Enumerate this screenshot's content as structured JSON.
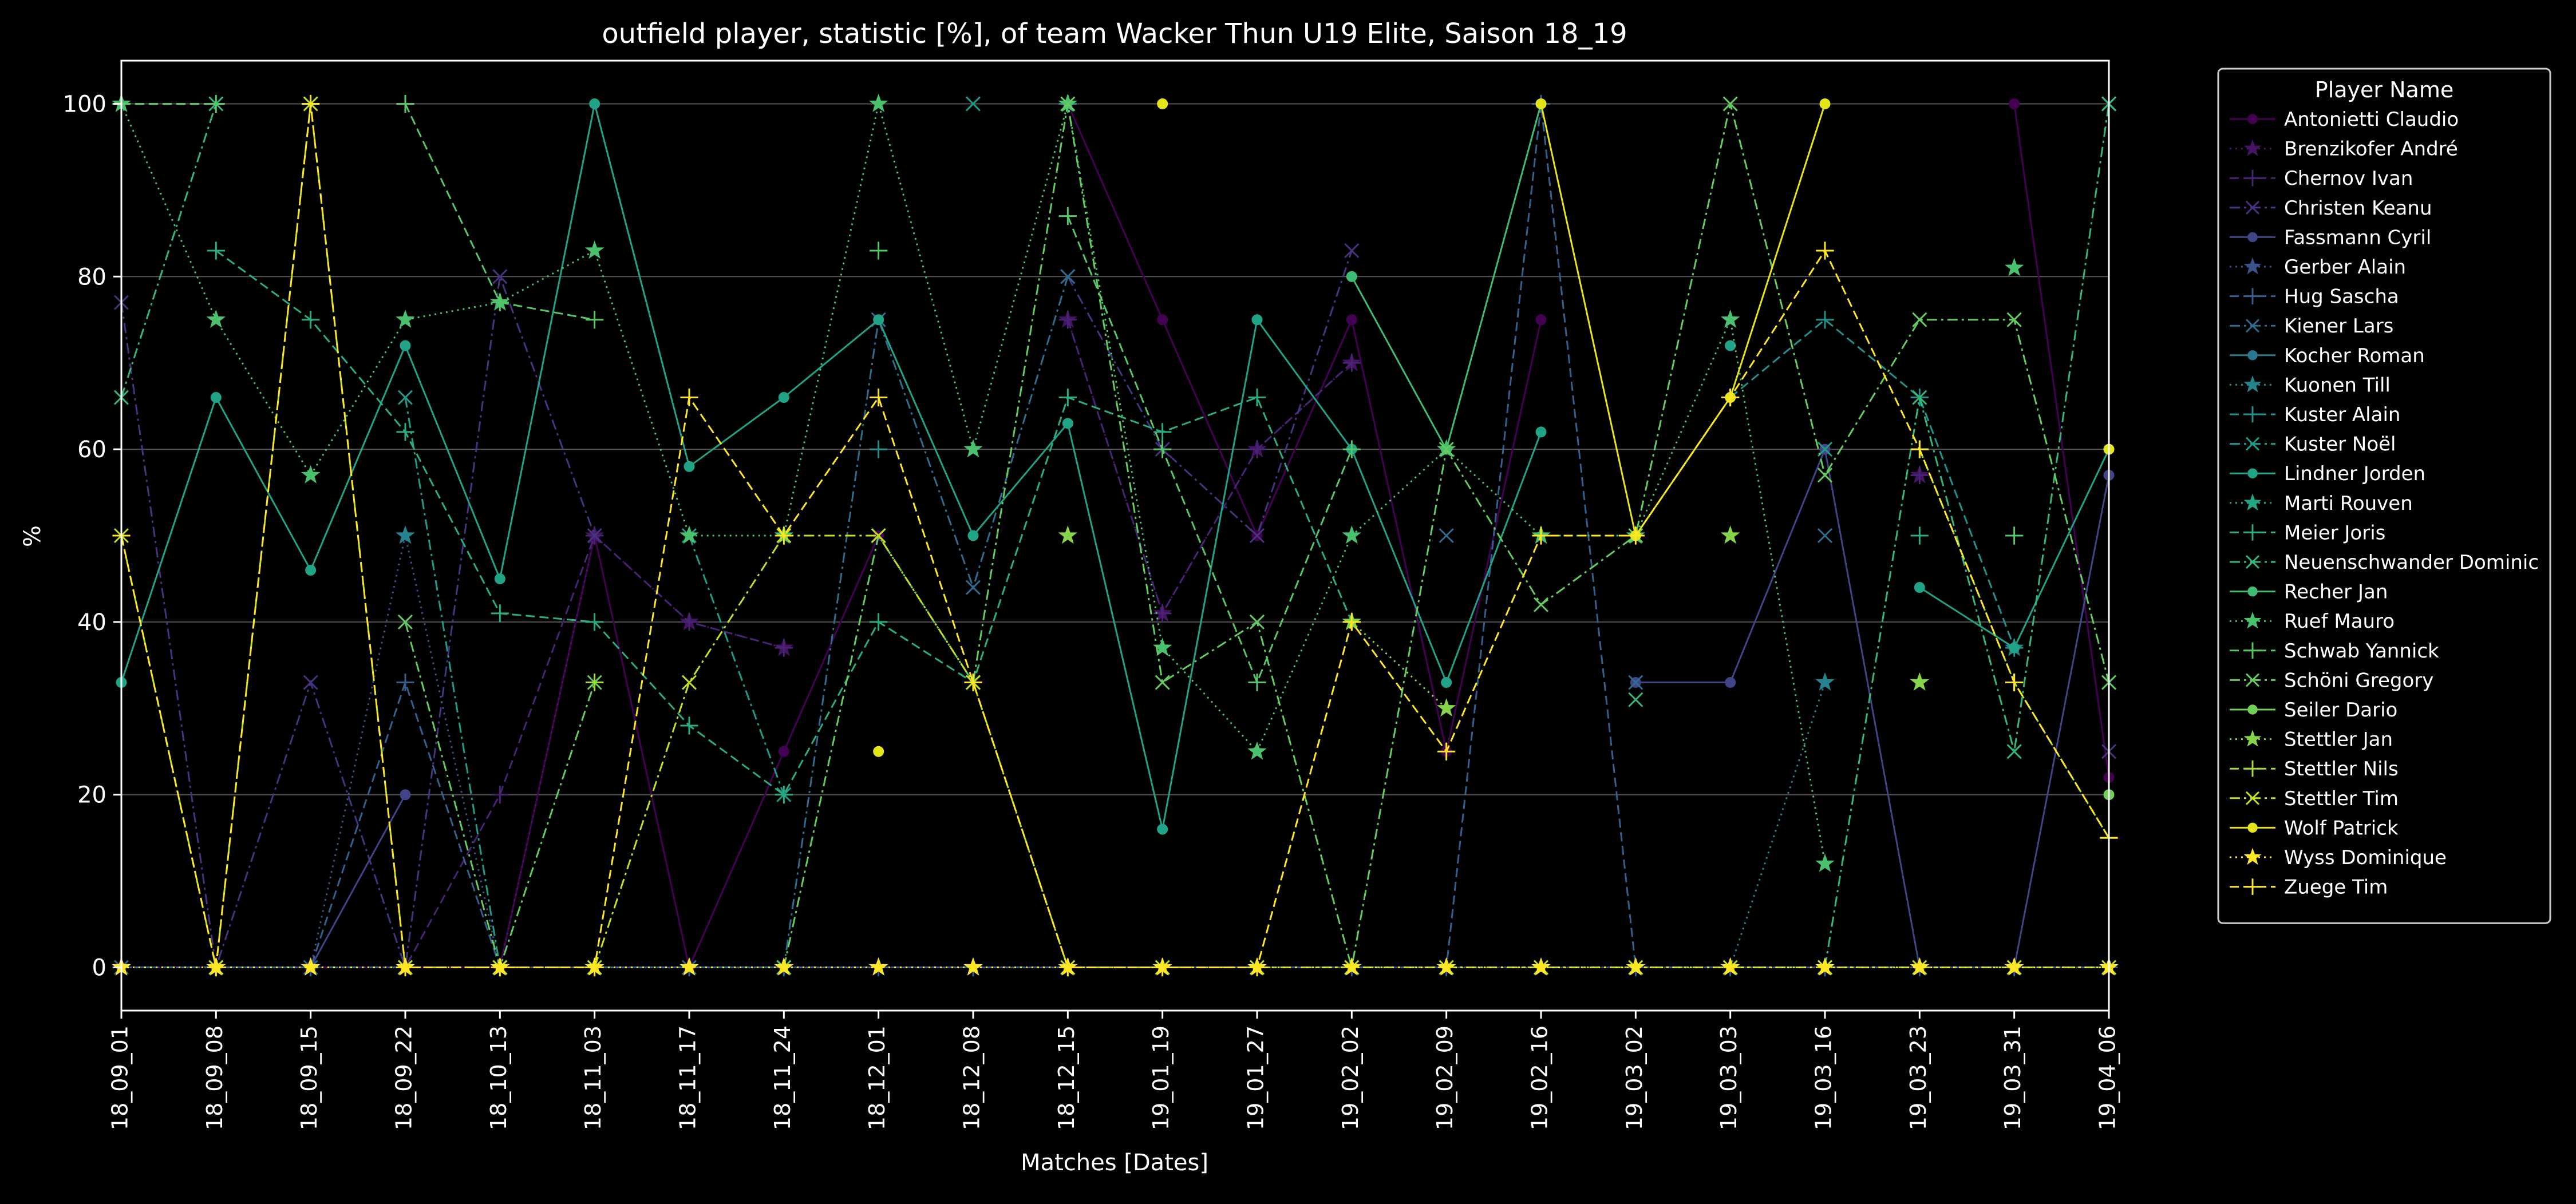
{
  "chart_data": {
    "type": "line",
    "title": "outfield player, statistic [%], of team Wacker Thun U19 Elite, Saison 18_19",
    "xlabel": "Matches [Dates]",
    "ylabel": "%",
    "ylim": [
      -5,
      105
    ],
    "yticks": [
      0,
      20,
      40,
      60,
      80,
      100
    ],
    "grid": "horizontal",
    "legend_title": "Player Name",
    "legend_position": "outside-top-right",
    "categories": [
      "18_09_01",
      "18_09_08",
      "18_09_15",
      "18_09_22",
      "18_10_13",
      "18_11_03",
      "18_11_17",
      "18_11_24",
      "18_12_01",
      "18_12_08",
      "18_12_15",
      "19_01_19",
      "19_01_27",
      "19_02_02",
      "19_02_09",
      "19_02_16",
      "19_03_02",
      "19_03_03",
      "19_03_16",
      "19_03_23",
      "19_03_31",
      "19_04_06"
    ],
    "series": [
      {
        "name": "Antonietti Claudio",
        "color": "#440154",
        "marker": "o",
        "dash": "solid",
        "values": [
          0,
          0,
          0,
          0,
          0,
          50,
          0,
          25,
          50,
          null,
          100,
          75,
          50,
          75,
          25,
          75,
          null,
          null,
          null,
          null,
          100,
          22
        ]
      },
      {
        "name": "Brenzikofer André",
        "color": "#471365",
        "marker": "*",
        "dash": "dotted",
        "values": [
          0,
          0,
          0,
          0,
          0,
          50,
          40,
          37,
          null,
          null,
          75,
          41,
          60,
          70,
          null,
          null,
          null,
          null,
          null,
          57,
          null,
          null
        ]
      },
      {
        "name": "Chernov Ivan",
        "color": "#482475",
        "marker": "+",
        "dash": "dashed",
        "values": [
          0,
          0,
          0,
          0,
          20,
          50,
          40,
          37,
          null,
          null,
          75,
          41,
          60,
          70,
          null,
          null,
          null,
          null,
          null,
          57,
          null,
          null
        ]
      },
      {
        "name": "Christen Keanu",
        "color": "#463480",
        "marker": "x",
        "dash": "dashdot",
        "values": [
          77,
          0,
          33,
          0,
          80,
          50,
          null,
          null,
          null,
          null,
          80,
          60,
          50,
          83,
          null,
          null,
          null,
          null,
          null,
          null,
          null,
          25
        ]
      },
      {
        "name": "Fassmann Cyril",
        "color": "#414487",
        "marker": "o",
        "dash": "solid",
        "values": [
          null,
          0,
          0,
          20,
          null,
          null,
          null,
          null,
          null,
          null,
          null,
          null,
          null,
          null,
          null,
          null,
          33,
          33,
          60,
          0,
          0,
          57
        ]
      },
      {
        "name": "Gerber Alain",
        "color": "#3b528b",
        "marker": "*",
        "dash": "dotted",
        "values": [
          0,
          0,
          0,
          50,
          0,
          0,
          0,
          0,
          0,
          0,
          0,
          0,
          0,
          0,
          0,
          0,
          0,
          0,
          0,
          0,
          0,
          0
        ]
      },
      {
        "name": "Hug Sascha",
        "color": "#355f8d",
        "marker": "+",
        "dash": "dashed",
        "values": [
          0,
          0,
          0,
          33,
          0,
          0,
          0,
          0,
          0,
          0,
          0,
          0,
          0,
          0,
          0,
          100,
          0,
          0,
          0,
          0,
          0,
          0
        ]
      },
      {
        "name": "Kiener Lars",
        "color": "#2f6c8e",
        "marker": "x",
        "dash": "dashdot",
        "values": [
          0,
          0,
          0,
          0,
          0,
          0,
          0,
          0,
          75,
          44,
          80,
          null,
          null,
          null,
          50,
          null,
          33,
          null,
          50,
          null,
          null,
          null
        ]
      },
      {
        "name": "Kocher Roman",
        "color": "#2a788e",
        "marker": "o",
        "dash": "solid",
        "values": [
          null,
          null,
          null,
          null,
          null,
          null,
          null,
          null,
          null,
          null,
          null,
          null,
          null,
          null,
          null,
          null,
          null,
          null,
          null,
          null,
          null,
          null
        ]
      },
      {
        "name": "Kuonen Till",
        "color": "#25848e",
        "marker": "*",
        "dash": "dotted",
        "values": [
          null,
          null,
          null,
          50,
          null,
          null,
          null,
          null,
          null,
          null,
          null,
          null,
          null,
          null,
          null,
          null,
          null,
          0,
          33,
          null,
          37,
          null
        ]
      },
      {
        "name": "Kuster Alain",
        "color": "#21918c",
        "marker": "+",
        "dash": "dashed",
        "values": [
          null,
          null,
          null,
          null,
          null,
          null,
          null,
          null,
          60,
          null,
          100,
          null,
          null,
          null,
          null,
          null,
          null,
          66,
          75,
          66,
          37,
          null
        ]
      },
      {
        "name": "Kuster Noël",
        "color": "#1e9c89",
        "marker": "x",
        "dash": "dashdot",
        "values": [
          null,
          null,
          null,
          66,
          0,
          null,
          50,
          20,
          null,
          100,
          null,
          null,
          null,
          null,
          null,
          null,
          null,
          null,
          60,
          null,
          null,
          100
        ]
      },
      {
        "name": "Lindner Jorden",
        "color": "#20a386",
        "marker": "o",
        "dash": "solid",
        "values": [
          33,
          66,
          46,
          72,
          45,
          100,
          58,
          66,
          75,
          50,
          63,
          16,
          75,
          60,
          33,
          62,
          null,
          72,
          null,
          44,
          37,
          60
        ]
      },
      {
        "name": "Marti Rouven",
        "color": "#22a884",
        "marker": "*",
        "dash": "dotted",
        "values": [
          null,
          null,
          null,
          null,
          null,
          null,
          null,
          null,
          null,
          null,
          null,
          null,
          null,
          null,
          null,
          null,
          null,
          null,
          null,
          null,
          null,
          null
        ]
      },
      {
        "name": "Meier Joris",
        "color": "#28ae80",
        "marker": "+",
        "dash": "dashed",
        "values": [
          null,
          83,
          75,
          62,
          41,
          40,
          28,
          20,
          40,
          33,
          66,
          62,
          66,
          40,
          null,
          null,
          null,
          66,
          null,
          50,
          null,
          null
        ]
      },
      {
        "name": "Neuenschwander Dominic",
        "color": "#35b779",
        "marker": "x",
        "dash": "dashdot",
        "values": [
          66,
          100,
          null,
          null,
          null,
          null,
          null,
          null,
          null,
          null,
          null,
          null,
          null,
          null,
          null,
          null,
          31,
          null,
          0,
          66,
          25,
          100
        ]
      },
      {
        "name": "Recher Jan",
        "color": "#3fbc73",
        "marker": "o",
        "dash": "solid",
        "values": [
          null,
          null,
          null,
          null,
          null,
          null,
          null,
          null,
          null,
          null,
          null,
          null,
          null,
          80,
          60,
          100,
          null,
          null,
          null,
          null,
          null,
          null
        ]
      },
      {
        "name": "Ruef Mauro",
        "color": "#4ac16d",
        "marker": "*",
        "dash": "dotted",
        "values": [
          100,
          75,
          57,
          75,
          77,
          83,
          50,
          50,
          100,
          60,
          100,
          37,
          25,
          50,
          60,
          50,
          50,
          75,
          12,
          null,
          81,
          null
        ]
      },
      {
        "name": "Schwab Yannick",
        "color": "#56c667",
        "marker": "+",
        "dash": "dashed",
        "values": [
          100,
          100,
          null,
          100,
          77,
          75,
          null,
          null,
          83,
          null,
          87,
          60,
          33,
          60,
          null,
          null,
          null,
          null,
          null,
          null,
          50,
          null
        ]
      },
      {
        "name": "Schöni Gregory",
        "color": "#63cb5f",
        "marker": "x",
        "dash": "dashdot",
        "values": [
          null,
          null,
          null,
          40,
          0,
          33,
          null,
          0,
          50,
          33,
          100,
          33,
          40,
          0,
          60,
          42,
          50,
          100,
          57,
          75,
          75,
          33
        ]
      },
      {
        "name": "Seiler Dario",
        "color": "#71cf57",
        "marker": "o",
        "dash": "solid",
        "values": [
          null,
          null,
          null,
          null,
          null,
          null,
          null,
          null,
          null,
          null,
          null,
          null,
          null,
          null,
          null,
          null,
          null,
          null,
          null,
          null,
          null,
          20
        ]
      },
      {
        "name": "Stettler Jan",
        "color": "#85d44a",
        "marker": "*",
        "dash": "dotted",
        "values": [
          null,
          null,
          null,
          null,
          null,
          null,
          null,
          null,
          null,
          null,
          50,
          null,
          null,
          40,
          30,
          null,
          null,
          50,
          null,
          33,
          null,
          null
        ]
      },
      {
        "name": "Stettler Nils",
        "color": "#a5db36",
        "marker": "+",
        "dash": "dashed",
        "values": [
          null,
          null,
          null,
          null,
          null,
          33,
          null,
          null,
          null,
          null,
          null,
          null,
          null,
          null,
          null,
          null,
          null,
          null,
          null,
          60,
          33,
          15
        ]
      },
      {
        "name": "Stettler Tim",
        "color": "#c2df23",
        "marker": "x",
        "dash": "dashdot",
        "values": [
          50,
          0,
          100,
          0,
          0,
          0,
          33,
          50,
          50,
          33,
          0,
          0,
          0,
          0,
          0,
          0,
          0,
          0,
          0,
          0,
          0,
          0
        ]
      },
      {
        "name": "Wolf Patrick",
        "color": "#e5e419",
        "marker": "o",
        "dash": "solid",
        "values": [
          null,
          null,
          null,
          null,
          null,
          null,
          null,
          null,
          25,
          null,
          null,
          100,
          null,
          null,
          null,
          100,
          50,
          66,
          100,
          null,
          null,
          60
        ]
      },
      {
        "name": "Wyss Dominique",
        "color": "#fde725",
        "marker": "*",
        "dash": "dotted",
        "values": [
          0,
          0,
          0,
          0,
          0,
          0,
          0,
          0,
          0,
          0,
          0,
          0,
          0,
          0,
          0,
          0,
          0,
          0,
          0,
          0,
          0,
          0
        ]
      },
      {
        "name": "Zuege Tim",
        "color": "#fde725",
        "marker": "+",
        "dash": "dashed",
        "values": [
          50,
          0,
          100,
          0,
          0,
          0,
          66,
          50,
          66,
          33,
          0,
          0,
          0,
          40,
          25,
          50,
          50,
          66,
          83,
          60,
          33,
          15
        ]
      }
    ]
  }
}
